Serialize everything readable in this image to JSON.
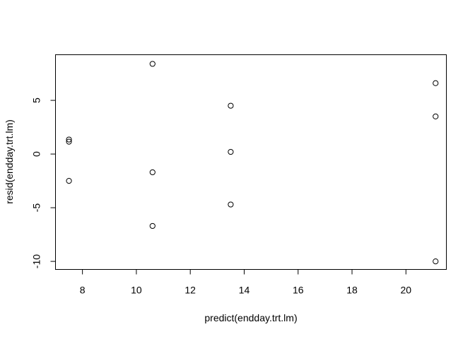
{
  "chart_data": {
    "type": "scatter",
    "title": "",
    "xlabel": "predict(endday.trt.lm)",
    "ylabel": "resid(endday.trt.lm)",
    "xlim": [
      7,
      21.5
    ],
    "ylim": [
      -10.75,
      9.25
    ],
    "xticks": [
      8,
      10,
      12,
      14,
      16,
      18,
      20
    ],
    "yticks": [
      -10,
      -5,
      0,
      5
    ],
    "grid": false,
    "points": [
      {
        "x": 7.5,
        "y": 1.35
      },
      {
        "x": 7.5,
        "y": 1.15
      },
      {
        "x": 7.5,
        "y": -2.5
      },
      {
        "x": 10.6,
        "y": 8.4
      },
      {
        "x": 10.6,
        "y": -1.7
      },
      {
        "x": 10.6,
        "y": -6.7
      },
      {
        "x": 13.5,
        "y": 4.5
      },
      {
        "x": 13.5,
        "y": 0.2
      },
      {
        "x": 13.5,
        "y": -4.7
      },
      {
        "x": 21.1,
        "y": 6.6
      },
      {
        "x": 21.1,
        "y": 3.5
      },
      {
        "x": 21.1,
        "y": -10.0
      }
    ]
  }
}
